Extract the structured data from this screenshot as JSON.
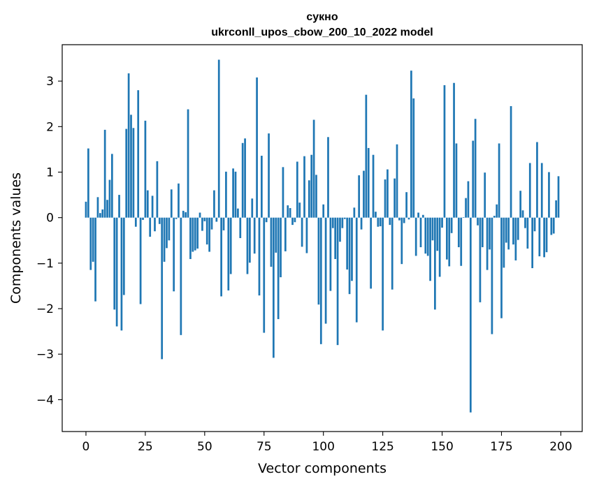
{
  "chart_data": {
    "type": "bar",
    "title_line1": "сукно",
    "title_line2": "ukrconll_upos_cbow_200_10_2022 model",
    "xlabel": "Vector components",
    "ylabel": "Components values",
    "xlim": [
      -10,
      209
    ],
    "ylim": [
      -4.7,
      3.8
    ],
    "xticks": [
      0,
      25,
      50,
      75,
      100,
      125,
      150,
      175,
      200
    ],
    "yticks": [
      -4,
      -3,
      -2,
      -1,
      0,
      1,
      2,
      3
    ],
    "bar_color": "#1f77b4",
    "x": [
      0,
      1,
      2,
      3,
      4,
      5,
      6,
      7,
      8,
      9,
      10,
      11,
      12,
      13,
      14,
      15,
      16,
      17,
      18,
      19,
      20,
      21,
      22,
      23,
      24,
      25,
      26,
      27,
      28,
      29,
      30,
      31,
      32,
      33,
      34,
      35,
      36,
      37,
      38,
      39,
      40,
      41,
      42,
      43,
      44,
      45,
      46,
      47,
      48,
      49,
      50,
      51,
      52,
      53,
      54,
      55,
      56,
      57,
      58,
      59,
      60,
      61,
      62,
      63,
      64,
      65,
      66,
      67,
      68,
      69,
      70,
      71,
      72,
      73,
      74,
      75,
      76,
      77,
      78,
      79,
      80,
      81,
      82,
      83,
      84,
      85,
      86,
      87,
      88,
      89,
      90,
      91,
      92,
      93,
      94,
      95,
      96,
      97,
      98,
      99,
      100,
      101,
      102,
      103,
      104,
      105,
      106,
      107,
      108,
      109,
      110,
      111,
      112,
      113,
      114,
      115,
      116,
      117,
      118,
      119,
      120,
      121,
      122,
      123,
      124,
      125,
      126,
      127,
      128,
      129,
      130,
      131,
      132,
      133,
      134,
      135,
      136,
      137,
      138,
      139,
      140,
      141,
      142,
      143,
      144,
      145,
      146,
      147,
      148,
      149,
      150,
      151,
      152,
      153,
      154,
      155,
      156,
      157,
      158,
      159,
      160,
      161,
      162,
      163,
      164,
      165,
      166,
      167,
      168,
      169,
      170,
      171,
      172,
      173,
      174,
      175,
      176,
      177,
      178,
      179,
      180,
      181,
      182,
      183,
      184,
      185,
      186,
      187,
      188,
      189,
      190,
      191,
      192,
      193,
      194,
      195,
      196,
      197,
      198,
      199
    ],
    "values": [
      0.35,
      1.52,
      -1.15,
      -0.97,
      -1.84,
      0.45,
      0.1,
      0.18,
      1.93,
      0.39,
      0.83,
      1.4,
      -2.02,
      -2.39,
      0.5,
      -2.48,
      -1.7,
      1.95,
      3.17,
      2.26,
      1.97,
      -0.2,
      2.8,
      -1.9,
      -0.05,
      2.13,
      0.6,
      -0.42,
      0.48,
      -0.3,
      1.24,
      -0.14,
      -3.11,
      -0.97,
      -0.67,
      -0.5,
      0.62,
      -1.62,
      -0.03,
      0.75,
      -2.58,
      0.15,
      0.12,
      2.38,
      -0.91,
      -0.75,
      -0.72,
      -0.68,
      0.11,
      -0.29,
      -0.08,
      -0.59,
      -0.75,
      -0.26,
      0.6,
      -0.09,
      3.47,
      -1.73,
      -0.28,
      1.01,
      -1.6,
      -1.24,
      1.08,
      1.01,
      0.2,
      -0.45,
      1.64,
      1.74,
      -1.24,
      -0.99,
      0.42,
      -0.79,
      3.08,
      -1.71,
      1.36,
      -2.53,
      -0.1,
      1.85,
      -1.08,
      -3.08,
      -0.77,
      -2.23,
      -1.31,
      1.11,
      -0.74,
      0.27,
      0.21,
      -0.16,
      -0.1,
      1.23,
      0.33,
      -0.64,
      1.35,
      -0.78,
      0.82,
      1.38,
      2.15,
      0.94,
      -1.91,
      -2.78,
      0.29,
      -2.33,
      1.77,
      -1.61,
      -0.23,
      -0.91,
      -2.8,
      -0.53,
      -0.23,
      -0.03,
      -1.14,
      -1.68,
      -1.39,
      0.22,
      -2.3,
      0.93,
      -0.26,
      1.03,
      2.7,
      1.53,
      -1.56,
      1.38,
      0.13,
      -0.2,
      -0.19,
      -2.48,
      0.84,
      1.06,
      -0.16,
      -1.58,
      0.86,
      1.61,
      -0.06,
      -1.02,
      -0.12,
      0.56,
      -0.04,
      3.23,
      2.62,
      -0.84,
      0.11,
      -0.65,
      0.06,
      -0.79,
      -0.84,
      -1.39,
      -0.5,
      -2.02,
      -0.73,
      -1.3,
      -0.22,
      2.91,
      -0.92,
      -1.07,
      -0.34,
      2.96,
      1.63,
      -0.65,
      -1.06,
      0.01,
      0.43,
      0.8,
      -4.28,
      1.69,
      2.17,
      -0.17,
      -1.86,
      -0.65,
      0.99,
      -1.15,
      -0.7,
      -2.56,
      0.04,
      0.29,
      1.63,
      -2.21,
      -1.1,
      -0.55,
      -0.7,
      2.45,
      -0.59,
      -0.94,
      -0.49,
      0.59,
      0.16,
      -0.23,
      -0.68,
      1.2,
      -1.11,
      -0.3,
      1.66,
      -0.85,
      1.2,
      -0.87,
      -0.76,
      1.0,
      -0.38,
      -0.35,
      0.38,
      0.91
    ]
  }
}
